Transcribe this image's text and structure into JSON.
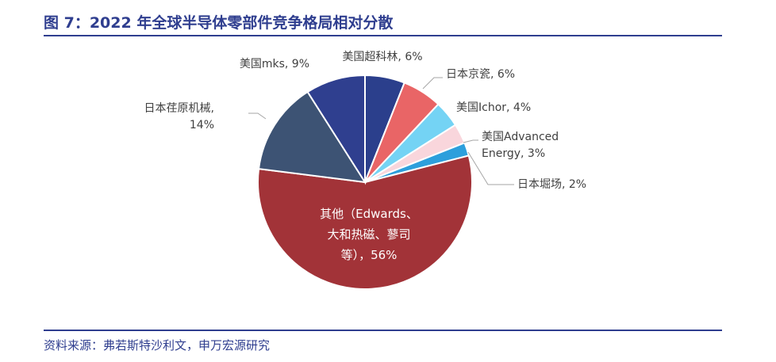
{
  "header": {
    "title": "图 7：2022 年全球半导体零部件竞争格局相对分散"
  },
  "footer": {
    "source": "资料来源：弗若斯特沙利文，申万宏源研究"
  },
  "chart_data": {
    "type": "pie",
    "slices": [
      {
        "label_lines": [
          "美国超科林, 6%"
        ],
        "value": 6,
        "color": "#2b3f8c"
      },
      {
        "label_lines": [
          "日本京瓷, 6%"
        ],
        "value": 6,
        "color": "#e96566"
      },
      {
        "label_lines": [
          "美国Ichor, 4%"
        ],
        "value": 4,
        "color": "#74d3f4"
      },
      {
        "label_lines": [
          "美国Advanced",
          "Energy, 3%"
        ],
        "value": 3,
        "color": "#f9d6dc"
      },
      {
        "label_lines": [
          "日本堀场, 2%"
        ],
        "value": 2,
        "color": "#2d9fdc"
      },
      {
        "label_lines": [
          "其他（Edwards、",
          "大和热磁、蓼司",
          "等），56%"
        ],
        "value": 56,
        "color": "#a23338"
      },
      {
        "label_lines": [
          "日本荏原机械,",
          "14%"
        ],
        "value": 14,
        "color": "#3d5374"
      },
      {
        "label_lines": [
          "美国mks, 9%"
        ],
        "value": 9,
        "color": "#2f3f8f"
      }
    ]
  }
}
